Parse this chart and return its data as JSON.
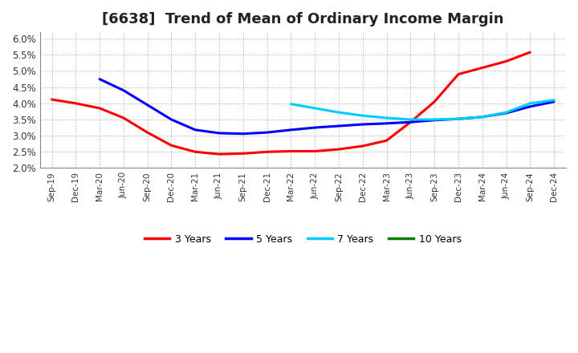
{
  "title": "[6638]  Trend of Mean of Ordinary Income Margin",
  "title_fontsize": 13,
  "ylim": [
    0.02,
    0.062
  ],
  "yticks": [
    0.02,
    0.025,
    0.03,
    0.035,
    0.04,
    0.045,
    0.05,
    0.055,
    0.06
  ],
  "ytick_labels": [
    "2.0%",
    "2.5%",
    "3.0%",
    "3.5%",
    "4.0%",
    "4.5%",
    "5.0%",
    "5.5%",
    "6.0%"
  ],
  "x_labels": [
    "Sep-19",
    "Dec-19",
    "Mar-20",
    "Jun-20",
    "Sep-20",
    "Dec-20",
    "Mar-21",
    "Jun-21",
    "Sep-21",
    "Dec-21",
    "Mar-22",
    "Jun-22",
    "Sep-22",
    "Dec-22",
    "Mar-23",
    "Jun-23",
    "Sep-23",
    "Dec-23",
    "Mar-24",
    "Jun-24",
    "Sep-24",
    "Dec-24"
  ],
  "series": {
    "3 Years": {
      "color": "#FF0000",
      "values": [
        0.0412,
        0.04,
        0.0385,
        0.0355,
        0.031,
        0.027,
        0.025,
        0.0243,
        0.0245,
        0.025,
        0.0252,
        0.0252,
        0.0258,
        0.0268,
        0.0285,
        0.0342,
        0.0405,
        0.049,
        0.051,
        0.053,
        0.0558,
        null
      ]
    },
    "5 Years": {
      "color": "#0000FF",
      "values": [
        null,
        null,
        0.0475,
        0.044,
        0.0395,
        0.035,
        0.0318,
        0.0308,
        0.0306,
        0.031,
        0.0318,
        0.0325,
        0.033,
        0.0335,
        0.0338,
        0.0342,
        0.0348,
        0.0352,
        0.0358,
        0.037,
        0.039,
        0.0405
      ]
    },
    "7 Years": {
      "color": "#00CCFF",
      "values": [
        null,
        null,
        null,
        null,
        null,
        null,
        null,
        null,
        null,
        null,
        0.0398,
        0.0385,
        0.0372,
        0.0362,
        0.0355,
        0.035,
        0.035,
        0.0352,
        0.0358,
        0.0372,
        0.04,
        0.041
      ]
    },
    "10 Years": {
      "color": "#008000",
      "values": [
        null,
        null,
        null,
        null,
        null,
        null,
        null,
        null,
        null,
        null,
        null,
        null,
        null,
        null,
        null,
        null,
        null,
        null,
        null,
        null,
        null,
        null
      ]
    }
  },
  "legend_order": [
    "3 Years",
    "5 Years",
    "7 Years",
    "10 Years"
  ],
  "background_color": "#FFFFFF",
  "plot_bg_color": "#FFFFFF",
  "grid_color": "#AAAAAA",
  "line_width": 2.2
}
